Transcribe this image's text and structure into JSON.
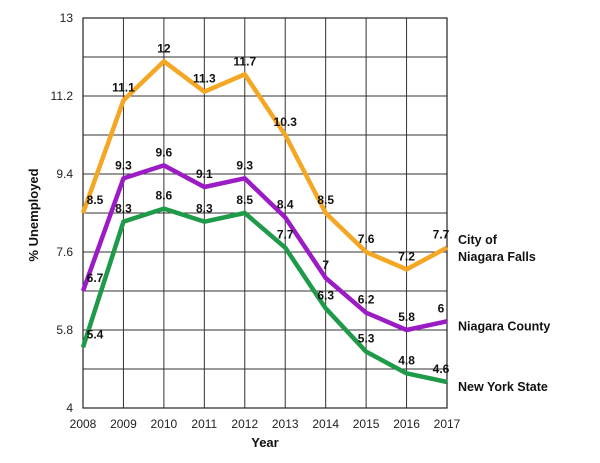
{
  "chart_data": {
    "type": "line",
    "xlabel": "Year",
    "ylabel": "% Unemployed",
    "x": [
      "2008",
      "2009",
      "2010",
      "2011",
      "2012",
      "2013",
      "2014",
      "2015",
      "2016",
      "2017"
    ],
    "yticks": [
      "4",
      "5.8",
      "7.6",
      "9.4",
      "11.2",
      "13"
    ],
    "ylim": [
      4,
      13
    ],
    "grid": true,
    "legend": "none",
    "series": [
      {
        "name": "City of Niagara Falls",
        "name_lines": [
          "City of",
          "Niagara Falls"
        ],
        "color": "#F5A623",
        "values": [
          8.5,
          11.1,
          12,
          11.3,
          11.7,
          10.3,
          8.5,
          7.6,
          7.2,
          7.7
        ],
        "labels": [
          "8.5",
          "11.1",
          "12",
          "11.3",
          "11.7",
          "10.3",
          "8.5",
          "7.6",
          "7.2",
          "7.7"
        ]
      },
      {
        "name": "Niagara County",
        "name_lines": [
          "Niagara County"
        ],
        "color": "#9B1CC4",
        "values": [
          6.7,
          9.3,
          9.6,
          9.1,
          9.3,
          8.4,
          7,
          6.2,
          5.8,
          6
        ],
        "labels": [
          "6.7",
          "9.3",
          "9.6",
          "9.1",
          "9.3",
          "8.4",
          "7",
          "6.2",
          "5.8",
          "6"
        ]
      },
      {
        "name": "New York State",
        "name_lines": [
          "New York State"
        ],
        "color": "#1E9A48",
        "values": [
          5.4,
          8.3,
          8.6,
          8.3,
          8.5,
          7.7,
          6.3,
          5.3,
          4.8,
          4.6
        ],
        "labels": [
          "5.4",
          "8.3",
          "8.6",
          "8.3",
          "8.5",
          "7.7",
          "6.3",
          "5.3",
          "4.8",
          "4.6"
        ]
      }
    ]
  }
}
